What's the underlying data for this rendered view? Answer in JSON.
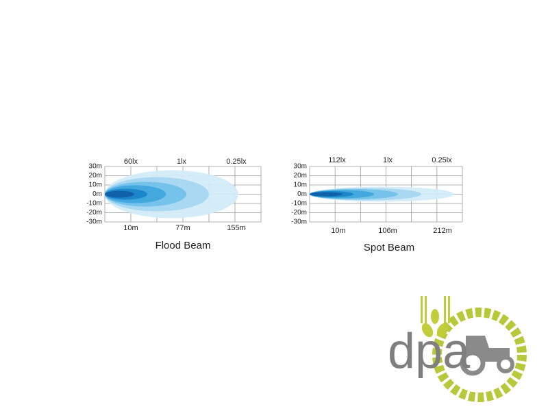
{
  "diagrams": [
    {
      "caption": "Flood Beam",
      "top_labels": [
        "60lx",
        "1lx",
        "0.25lx"
      ],
      "y_labels": [
        "30m",
        "20m",
        "10m",
        "0m",
        "-10m",
        "-20m",
        "-30m"
      ],
      "bottom_labels": [
        "10m",
        "77m",
        "155m"
      ]
    },
    {
      "caption": "Spot Beam",
      "top_labels": [
        "112lx",
        "1lx",
        "0.25lx"
      ],
      "y_labels": [
        "30m",
        "20m",
        "10m",
        "0m",
        "-10m",
        "-20m",
        "-30m"
      ],
      "bottom_labels": [
        "10m",
        "106m",
        "212m"
      ]
    }
  ],
  "logo": {
    "text": "dpa"
  }
}
